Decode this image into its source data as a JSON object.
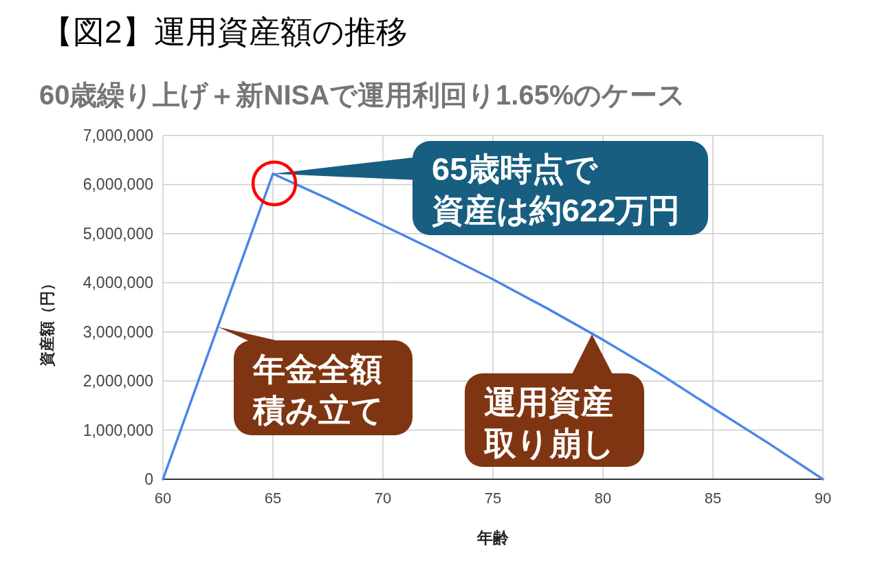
{
  "chart_data": {
    "type": "line",
    "title": "【図2】運用資産額の推移",
    "subtitle": "60歳繰り上げ＋新NISAで運用利回り1.65%のケース",
    "xlabel": "年齢",
    "ylabel": "資産額（円）",
    "x": [
      60,
      65,
      67.5,
      70,
      72.5,
      75,
      77.5,
      80,
      82.5,
      85,
      87.5,
      90
    ],
    "series": [
      {
        "color": "#4a86e8",
        "values": [
          0,
          6220000,
          5710000,
          5170000,
          4630000,
          4070000,
          3470000,
          2840000,
          2170000,
          1450000,
          740000,
          0
        ]
      }
    ],
    "xlim": [
      60,
      90
    ],
    "xticks": [
      60,
      65,
      70,
      75,
      80,
      85,
      90
    ],
    "ylim": [
      0,
      7000000
    ],
    "yticks": [
      0,
      {
        "value": 1000000,
        "label": "1,000,000"
      },
      {
        "value": 2000000,
        "label": "2,000,000"
      },
      {
        "value": 3000000,
        "label": "3,000,000"
      },
      {
        "value": 4000000,
        "label": "4,000,000"
      },
      {
        "value": 5000000,
        "label": "5,000,000"
      },
      {
        "value": 6000000,
        "label": "6,000,000"
      },
      {
        "value": 7000000,
        "label": "7,000,000"
      }
    ],
    "grid": true,
    "annotations": [
      {
        "text": "65歳時点で",
        "x": 65,
        "y": 6220000
      },
      "資産は約622万円",
      {
        "text": "年金全額",
        "x": 62.5,
        "y": 3100000
      },
      "積み立て",
      {
        "text": "運用資産",
        "x": 79.5,
        "y": 2950000
      },
      "取り崩し"
    ]
  }
}
